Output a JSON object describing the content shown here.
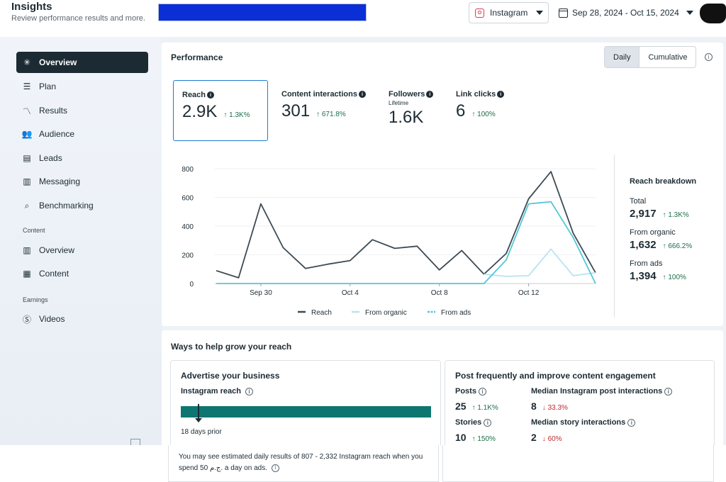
{
  "header": {
    "title": "Insights",
    "subtitle": "Review performance results and more.",
    "platform": "Instagram",
    "date_range": "Sep 28, 2024 - Oct 15, 2024"
  },
  "sidebar": {
    "items": [
      {
        "label": "Overview",
        "icon": "overview-icon"
      },
      {
        "label": "Plan",
        "icon": "plan-icon"
      },
      {
        "label": "Results",
        "icon": "results-icon"
      },
      {
        "label": "Audience",
        "icon": "audience-icon"
      },
      {
        "label": "Leads",
        "icon": "leads-icon"
      },
      {
        "label": "Messaging",
        "icon": "messaging-icon"
      },
      {
        "label": "Benchmarking",
        "icon": "benchmarking-icon"
      }
    ],
    "content_section": "Content",
    "content_items": [
      {
        "label": "Overview",
        "icon": "content-overview-icon"
      },
      {
        "label": "Content",
        "icon": "content-grid-icon"
      }
    ],
    "earnings_section": "Earnings",
    "earnings_items": [
      {
        "label": "Videos",
        "icon": "dollar-icon"
      }
    ]
  },
  "performance": {
    "title": "Performance",
    "toggle": {
      "daily": "Daily",
      "cumulative": "Cumulative",
      "selected": "Daily"
    },
    "metrics": [
      {
        "label": "Reach",
        "value": "2.9K",
        "delta": "↑ 1.3K%"
      },
      {
        "label": "Content interactions",
        "value": "301",
        "delta": "↑ 671.8%"
      },
      {
        "label": "Followers",
        "sub": "Lifetime",
        "value": "1.6K"
      },
      {
        "label": "Link clicks",
        "value": "6",
        "delta": "↑ 100%"
      }
    ],
    "breakdown": {
      "title": "Reach breakdown",
      "rows": [
        {
          "label": "Total",
          "value": "2,917",
          "delta": "↑ 1.3K%"
        },
        {
          "label": "From organic",
          "value": "1,632",
          "delta": "↑ 666.2%"
        },
        {
          "label": "From ads",
          "value": "1,394",
          "delta": "↑ 100%"
        }
      ]
    }
  },
  "chart_data": {
    "type": "line",
    "x": [
      "Sep 28",
      "Sep 29",
      "Sep 30",
      "Oct 1",
      "Oct 2",
      "Oct 3",
      "Oct 4",
      "Oct 5",
      "Oct 6",
      "Oct 7",
      "Oct 8",
      "Oct 9",
      "Oct 10",
      "Oct 11",
      "Oct 12",
      "Oct 13",
      "Oct 14",
      "Oct 15"
    ],
    "x_ticks": [
      "Sep 30",
      "Oct 4",
      "Oct 8",
      "Oct 12"
    ],
    "y_ticks": [
      0,
      200,
      400,
      600,
      800
    ],
    "ylim": [
      0,
      800
    ],
    "legend_position": "bottom",
    "series": [
      {
        "name": "Reach",
        "color": "#3d4a54",
        "values": [
          90,
          40,
          555,
          250,
          105,
          135,
          160,
          305,
          245,
          260,
          95,
          230,
          65,
          210,
          590,
          780,
          350,
          75
        ]
      },
      {
        "name": "From organic",
        "color": "#b7e4ee",
        "values": [
          null,
          null,
          null,
          null,
          null,
          null,
          null,
          null,
          null,
          null,
          null,
          null,
          65,
          50,
          55,
          240,
          55,
          75
        ]
      },
      {
        "name": "From ads",
        "color": "#53c7d6",
        "values": [
          0,
          0,
          0,
          0,
          0,
          0,
          0,
          0,
          0,
          0,
          0,
          0,
          0,
          165,
          555,
          570,
          320,
          0
        ]
      }
    ]
  },
  "grow": {
    "title": "Ways to help grow your reach",
    "advertise": {
      "title": "Advertise your business",
      "subtitle": "Instagram reach",
      "days_prior": "18 days prior",
      "estimate": "You may see estimated daily results of 807 - 2,332 Instagram reach when you spend 50 ج.م. a day on ads."
    },
    "post": {
      "title": "Post frequently and improve content engagement",
      "stats": [
        {
          "label": "Posts",
          "value": "25",
          "delta": "↑ 1.1K%",
          "dir": "up"
        },
        {
          "label": "Median Instagram post interactions",
          "value": "8",
          "delta": "↓ 33.3%",
          "dir": "down"
        },
        {
          "label": "Stories",
          "value": "10",
          "delta": "↑ 150%",
          "dir": "up"
        },
        {
          "label": "Median story interactions",
          "value": "2",
          "delta": "↓ 60%",
          "dir": "down"
        }
      ]
    }
  }
}
